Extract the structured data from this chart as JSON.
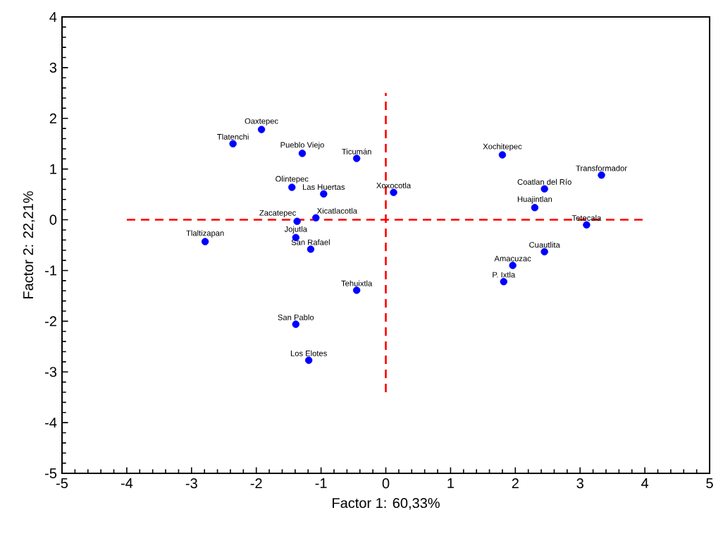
{
  "chart_data": {
    "type": "scatter",
    "xlabel": "Factor 1: 60,33%",
    "ylabel": "Factor 2: 22,21%",
    "xlim": [
      -5,
      5
    ],
    "ylim": [
      -5,
      4
    ],
    "xticks": [
      -5,
      -4,
      -3,
      -2,
      -1,
      0,
      1,
      2,
      3,
      4,
      5
    ],
    "yticks": [
      -5,
      -4,
      -3,
      -2,
      -1,
      0,
      1,
      2,
      3,
      4
    ],
    "grid": false,
    "series": [
      {
        "color": "#0000ff",
        "marker": "circle",
        "x": [
          -1.92,
          -2.36,
          -1.29,
          -0.45,
          1.8,
          3.33,
          2.45,
          2.3,
          3.1,
          -1.45,
          -0.96,
          0.12,
          -1.08,
          -1.37,
          -1.39,
          -2.79,
          -1.16,
          2.45,
          1.96,
          1.82,
          -0.45,
          -1.39,
          -1.19
        ],
        "values": [
          1.78,
          1.5,
          1.31,
          1.21,
          1.28,
          0.88,
          0.61,
          0.24,
          -0.1,
          0.64,
          0.51,
          0.54,
          0.04,
          -0.03,
          -0.35,
          -0.43,
          -0.58,
          -0.63,
          -0.9,
          -1.22,
          -1.39,
          -2.06,
          -2.77
        ]
      },
      {
        "type": "line",
        "color": "#ff0000",
        "line_style": "dashed",
        "marker": "none",
        "x": [
          -4,
          4
        ],
        "values": [
          0,
          0
        ]
      },
      {
        "type": "line",
        "color": "#ff0000",
        "line_style": "dashed",
        "marker": "none",
        "x": [
          0,
          0
        ],
        "values": [
          -3.4,
          2.5
        ]
      }
    ],
    "annotations": [
      {
        "text": "Oaxtepec",
        "x": -1.92,
        "y": 1.78
      },
      {
        "text": "Tlatenchi",
        "x": -2.36,
        "y": 1.5
      },
      {
        "text": "Pueblo Viejo",
        "x": -1.29,
        "y": 1.31
      },
      {
        "text": "Ticumán",
        "x": -0.45,
        "y": 1.21
      },
      {
        "text": "Xochitepec",
        "x": 1.8,
        "y": 1.28
      },
      {
        "text": "Transformador",
        "x": 3.33,
        "y": 0.88
      },
      {
        "text": "Coatlan del Río",
        "x": 2.45,
        "y": 0.61
      },
      {
        "text": "Huajintlan",
        "x": 2.3,
        "y": 0.24
      },
      {
        "text": "Tetecala",
        "x": 3.1,
        "y": -0.1
      },
      {
        "text": "Olintepec",
        "x": -1.45,
        "y": 0.64
      },
      {
        "text": "Las Huertas",
        "x": -0.96,
        "y": 0.51
      },
      {
        "text": "Xoxocotla",
        "x": 0.12,
        "y": 0.54
      },
      {
        "text": "Xicatlacotla",
        "x": -1.08,
        "y": 0.04
      },
      {
        "text": "Zacatepec",
        "x": -1.37,
        "y": -0.03
      },
      {
        "text": "Jojutla",
        "x": -1.39,
        "y": -0.35
      },
      {
        "text": "Tlaltizapan",
        "x": -2.79,
        "y": -0.43
      },
      {
        "text": "San Rafael",
        "x": -1.16,
        "y": -0.58
      },
      {
        "text": "Cuautlita",
        "x": 2.45,
        "y": -0.63
      },
      {
        "text": "Amacuzac",
        "x": 1.96,
        "y": -0.9
      },
      {
        "text": "P. Ixtla",
        "x": 1.82,
        "y": -1.22
      },
      {
        "text": "Tehuixtla",
        "x": -0.45,
        "y": -1.39
      },
      {
        "text": "San Pablo",
        "x": -1.39,
        "y": -2.06
      },
      {
        "text": "Los Elotes",
        "x": -1.19,
        "y": -2.77
      }
    ]
  }
}
